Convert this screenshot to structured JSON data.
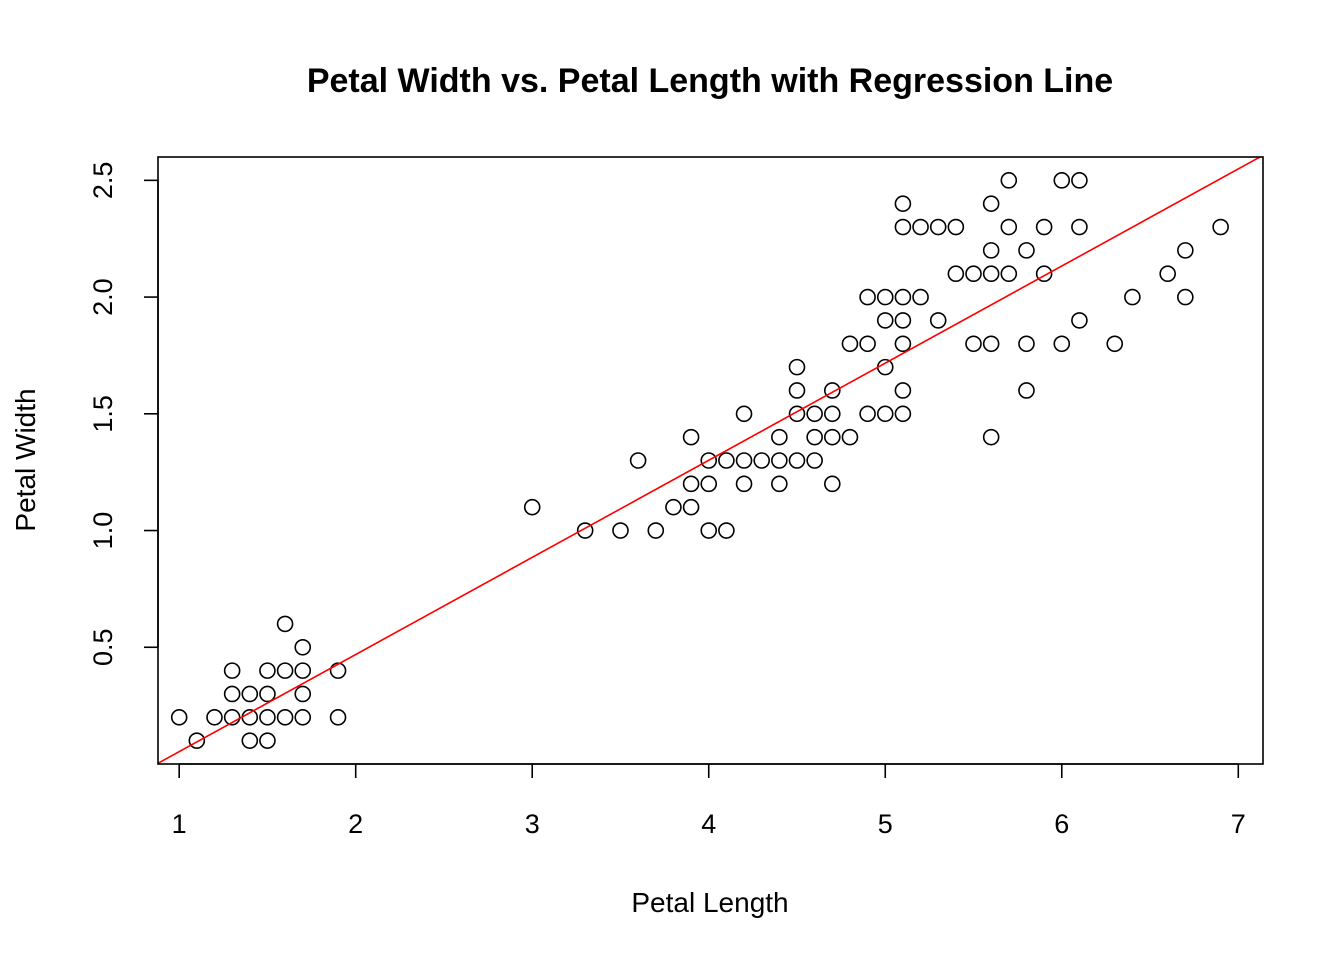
{
  "chart_data": {
    "type": "scatter",
    "title": "Petal Width vs. Petal Length with Regression Line",
    "xlabel": "Petal Length",
    "ylabel": "Petal Width",
    "xlim": [
      0.88,
      7.14
    ],
    "ylim": [
      0.0,
      2.6
    ],
    "xticks": [
      1,
      2,
      3,
      4,
      5,
      6,
      7
    ],
    "yticks": [
      0.5,
      1.0,
      1.5,
      2.0,
      2.5
    ],
    "xtick_labels": [
      "1",
      "2",
      "3",
      "4",
      "5",
      "6",
      "7"
    ],
    "ytick_labels": [
      "0.5",
      "1.0",
      "1.5",
      "2.0",
      "2.5"
    ],
    "grid": false,
    "point_color": "#000000",
    "line_color": "#ff0000",
    "regression_line": {
      "intercept": -0.363,
      "slope": 0.416
    },
    "points": [
      [
        1.0,
        0.2
      ],
      [
        1.1,
        0.1
      ],
      [
        1.2,
        0.2
      ],
      [
        1.3,
        0.2
      ],
      [
        1.3,
        0.3
      ],
      [
        1.3,
        0.4
      ],
      [
        1.4,
        0.1
      ],
      [
        1.4,
        0.2
      ],
      [
        1.4,
        0.3
      ],
      [
        1.5,
        0.1
      ],
      [
        1.5,
        0.2
      ],
      [
        1.5,
        0.3
      ],
      [
        1.5,
        0.4
      ],
      [
        1.6,
        0.2
      ],
      [
        1.6,
        0.4
      ],
      [
        1.6,
        0.6
      ],
      [
        1.7,
        0.2
      ],
      [
        1.7,
        0.3
      ],
      [
        1.7,
        0.4
      ],
      [
        1.7,
        0.5
      ],
      [
        1.9,
        0.2
      ],
      [
        1.9,
        0.4
      ],
      [
        3.0,
        1.1
      ],
      [
        3.3,
        1.0
      ],
      [
        3.5,
        1.0
      ],
      [
        3.6,
        1.3
      ],
      [
        3.7,
        1.0
      ],
      [
        3.8,
        1.1
      ],
      [
        3.9,
        1.1
      ],
      [
        3.9,
        1.2
      ],
      [
        3.9,
        1.4
      ],
      [
        4.0,
        1.0
      ],
      [
        4.0,
        1.2
      ],
      [
        4.0,
        1.3
      ],
      [
        4.1,
        1.0
      ],
      [
        4.1,
        1.3
      ],
      [
        4.2,
        1.2
      ],
      [
        4.2,
        1.3
      ],
      [
        4.2,
        1.5
      ],
      [
        4.3,
        1.3
      ],
      [
        4.4,
        1.2
      ],
      [
        4.4,
        1.3
      ],
      [
        4.4,
        1.4
      ],
      [
        4.5,
        1.3
      ],
      [
        4.5,
        1.5
      ],
      [
        4.5,
        1.6
      ],
      [
        4.5,
        1.7
      ],
      [
        4.6,
        1.3
      ],
      [
        4.6,
        1.4
      ],
      [
        4.6,
        1.5
      ],
      [
        4.7,
        1.2
      ],
      [
        4.7,
        1.4
      ],
      [
        4.7,
        1.5
      ],
      [
        4.7,
        1.6
      ],
      [
        4.8,
        1.4
      ],
      [
        4.8,
        1.8
      ],
      [
        4.9,
        1.5
      ],
      [
        4.9,
        1.8
      ],
      [
        4.9,
        2.0
      ],
      [
        5.0,
        1.5
      ],
      [
        5.0,
        1.7
      ],
      [
        5.0,
        1.9
      ],
      [
        5.0,
        2.0
      ],
      [
        5.1,
        1.5
      ],
      [
        5.1,
        1.6
      ],
      [
        5.1,
        1.8
      ],
      [
        5.1,
        1.9
      ],
      [
        5.1,
        2.0
      ],
      [
        5.1,
        2.3
      ],
      [
        5.1,
        2.4
      ],
      [
        5.2,
        2.0
      ],
      [
        5.2,
        2.3
      ],
      [
        5.3,
        1.9
      ],
      [
        5.3,
        2.3
      ],
      [
        5.4,
        2.1
      ],
      [
        5.4,
        2.3
      ],
      [
        5.5,
        1.8
      ],
      [
        5.5,
        2.1
      ],
      [
        5.6,
        1.4
      ],
      [
        5.6,
        1.8
      ],
      [
        5.6,
        2.1
      ],
      [
        5.6,
        2.2
      ],
      [
        5.6,
        2.4
      ],
      [
        5.7,
        2.1
      ],
      [
        5.7,
        2.3
      ],
      [
        5.7,
        2.5
      ],
      [
        5.8,
        1.6
      ],
      [
        5.8,
        1.8
      ],
      [
        5.8,
        2.2
      ],
      [
        5.9,
        2.1
      ],
      [
        5.9,
        2.3
      ],
      [
        6.0,
        1.8
      ],
      [
        6.0,
        2.5
      ],
      [
        6.1,
        1.9
      ],
      [
        6.1,
        2.3
      ],
      [
        6.1,
        2.5
      ],
      [
        6.3,
        1.8
      ],
      [
        6.4,
        2.0
      ],
      [
        6.6,
        2.1
      ],
      [
        6.7,
        2.0
      ],
      [
        6.7,
        2.2
      ],
      [
        6.9,
        2.3
      ]
    ]
  }
}
